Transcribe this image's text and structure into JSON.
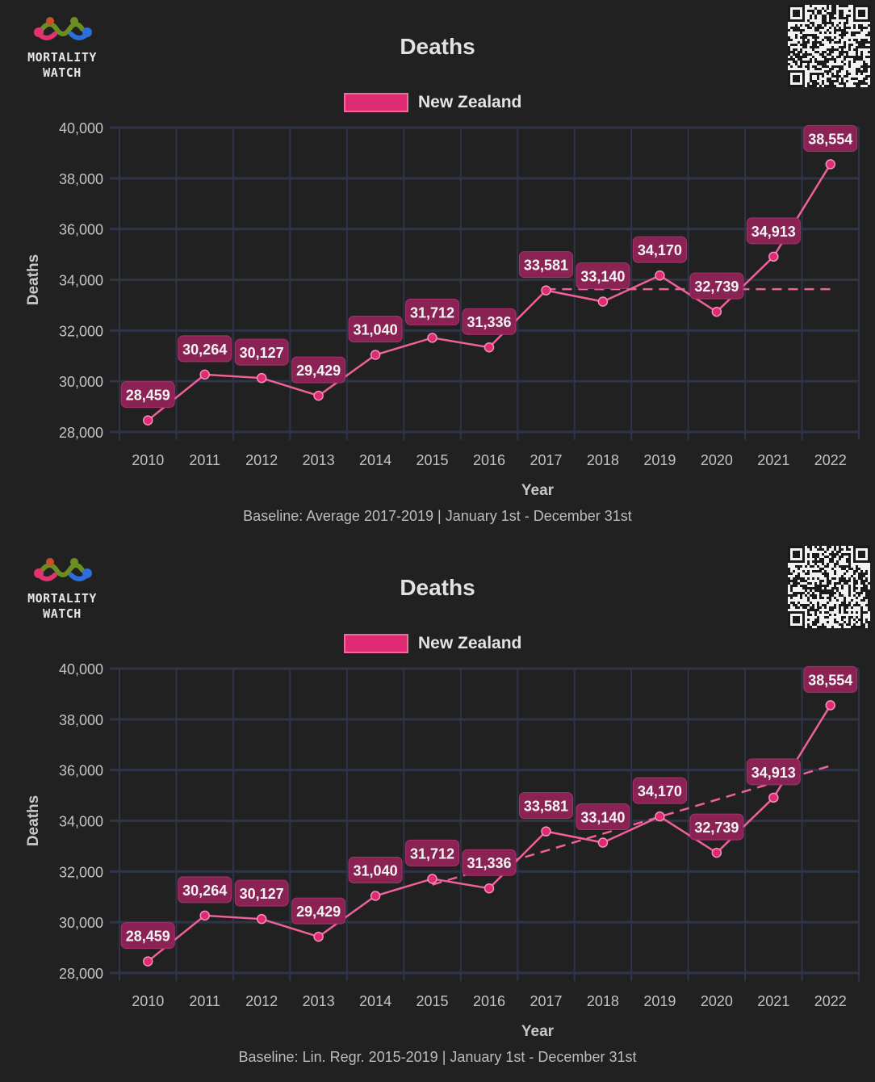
{
  "brand": {
    "name_line1": "MORTALITY",
    "name_line2": "WATCH"
  },
  "colors": {
    "background": "#212121",
    "series": "#f0609a",
    "legend_fill": "#df2a74",
    "label_bg": "#8a2354",
    "grid": "#2f3448"
  },
  "chart_data": [
    {
      "type": "line",
      "title": "Deaths",
      "xlabel": "Year",
      "ylabel": "Deaths",
      "ylim": [
        28000,
        40000
      ],
      "yticks": [
        "28,000",
        "30,000",
        "32,000",
        "34,000",
        "36,000",
        "38,000",
        "40,000"
      ],
      "categories": [
        "2010",
        "2011",
        "2012",
        "2013",
        "2014",
        "2015",
        "2016",
        "2017",
        "2018",
        "2019",
        "2020",
        "2021",
        "2022"
      ],
      "series": [
        {
          "name": "New Zealand",
          "values": [
            28459,
            30264,
            30127,
            29429,
            31040,
            31712,
            31336,
            33581,
            33140,
            34170,
            32739,
            34913,
            38554
          ],
          "labels": [
            "28,459",
            "30,264",
            "30,127",
            "29,429",
            "31,040",
            "31,712",
            "31,336",
            "33,581",
            "33,140",
            "34,170",
            "32,739",
            "34,913",
            "38,554"
          ]
        }
      ],
      "baseline": {
        "x": [
          "2017",
          "2022"
        ],
        "y": [
          33630,
          33630
        ]
      },
      "grid": true,
      "legend": "top-center",
      "caption": "Baseline: Average 2017-2019 | January 1st - December 31st"
    },
    {
      "type": "line",
      "title": "Deaths",
      "xlabel": "Year",
      "ylabel": "Deaths",
      "ylim": [
        28000,
        40000
      ],
      "yticks": [
        "28,000",
        "30,000",
        "32,000",
        "34,000",
        "36,000",
        "38,000",
        "40,000"
      ],
      "categories": [
        "2010",
        "2011",
        "2012",
        "2013",
        "2014",
        "2015",
        "2016",
        "2017",
        "2018",
        "2019",
        "2020",
        "2021",
        "2022"
      ],
      "series": [
        {
          "name": "New Zealand",
          "values": [
            28459,
            30264,
            30127,
            29429,
            31040,
            31712,
            31336,
            33581,
            33140,
            34170,
            32739,
            34913,
            38554
          ],
          "labels": [
            "28,459",
            "30,264",
            "30,127",
            "29,429",
            "31,040",
            "31,712",
            "31,336",
            "33,581",
            "33,140",
            "34,170",
            "32,739",
            "34,913",
            "38,554"
          ]
        }
      ],
      "baseline": {
        "x": [
          "2015",
          "2022"
        ],
        "y": [
          31480,
          36170
        ]
      },
      "grid": true,
      "legend": "top-center",
      "caption": "Baseline: Lin. Regr. 2015-2019 | January 1st - December 31st"
    }
  ]
}
